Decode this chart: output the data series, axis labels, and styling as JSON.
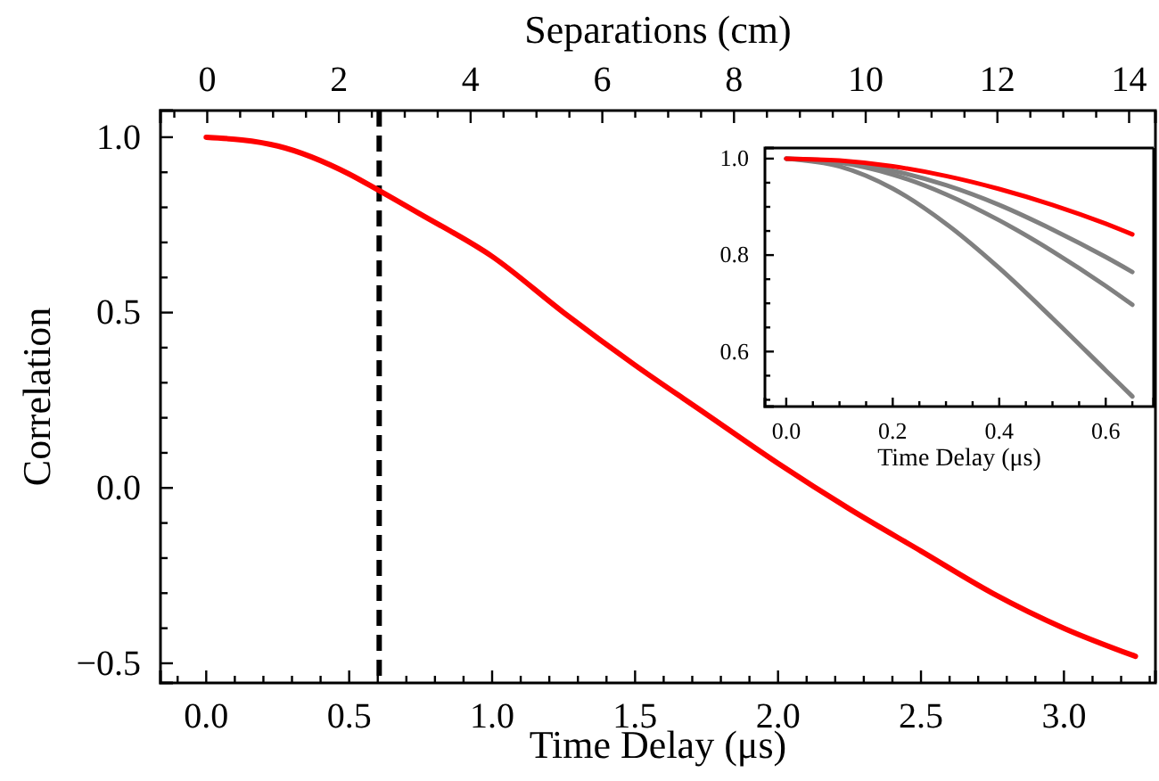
{
  "chart_data": [
    {
      "type": "line",
      "xlabel": "Time Delay (μs)",
      "ylabel": "Correlation",
      "x2label": "Separations (cm)",
      "xlim": [
        -0.16,
        3.32
      ],
      "ylim": [
        -0.556,
        1.076
      ],
      "x2lim": [
        -0.71,
        14.4
      ],
      "xticks": [
        {
          "value": -0.1,
          "label": null
        },
        {
          "value": 0,
          "label": "0.0"
        },
        {
          "value": 0.1,
          "label": null
        },
        {
          "value": 0.2,
          "label": null
        },
        {
          "value": 0.3,
          "label": null
        },
        {
          "value": 0.4,
          "label": null
        },
        {
          "value": 0.5,
          "label": "0.5"
        },
        {
          "value": 0.6,
          "label": null
        },
        {
          "value": 0.7,
          "label": null
        },
        {
          "value": 0.8,
          "label": null
        },
        {
          "value": 0.9,
          "label": null
        },
        {
          "value": 1,
          "label": "1.0"
        },
        {
          "value": 1.1,
          "label": null
        },
        {
          "value": 1.2,
          "label": null
        },
        {
          "value": 1.3,
          "label": null
        },
        {
          "value": 1.4,
          "label": null
        },
        {
          "value": 1.5,
          "label": "1.5"
        },
        {
          "value": 1.6,
          "label": null
        },
        {
          "value": 1.7,
          "label": null
        },
        {
          "value": 1.8,
          "label": null
        },
        {
          "value": 1.9,
          "label": null
        },
        {
          "value": 2,
          "label": "2.0"
        },
        {
          "value": 2.1,
          "label": null
        },
        {
          "value": 2.2,
          "label": null
        },
        {
          "value": 2.3,
          "label": null
        },
        {
          "value": 2.4,
          "label": null
        },
        {
          "value": 2.5,
          "label": "2.5"
        },
        {
          "value": 2.6,
          "label": null
        },
        {
          "value": 2.7,
          "label": null
        },
        {
          "value": 2.8,
          "label": null
        },
        {
          "value": 2.9,
          "label": null
        },
        {
          "value": 3,
          "label": "3.0"
        },
        {
          "value": 3.1,
          "label": null
        },
        {
          "value": 3.2,
          "label": null
        },
        {
          "value": 3.3,
          "label": null
        }
      ],
      "yticks": [
        {
          "value": -0.5,
          "label": "−0.5"
        },
        {
          "value": -0.4,
          "label": null
        },
        {
          "value": -0.3,
          "label": null
        },
        {
          "value": -0.2,
          "label": null
        },
        {
          "value": -0.1,
          "label": null
        },
        {
          "value": 0,
          "label": "0.0"
        },
        {
          "value": 0.1,
          "label": null
        },
        {
          "value": 0.2,
          "label": null
        },
        {
          "value": 0.3,
          "label": null
        },
        {
          "value": 0.4,
          "label": null
        },
        {
          "value": 0.5,
          "label": "0.5"
        },
        {
          "value": 0.6,
          "label": null
        },
        {
          "value": 0.7,
          "label": null
        },
        {
          "value": 0.8,
          "label": null
        },
        {
          "value": 0.9,
          "label": null
        },
        {
          "value": 1,
          "label": "1.0"
        }
      ],
      "x2ticks": [
        {
          "value": -0.5,
          "label": null
        },
        0,
        {
          "value": 0.5,
          "label": null
        },
        {
          "value": 1,
          "label": null
        },
        {
          "value": 1.5,
          "label": null
        },
        2,
        {
          "value": 2.5,
          "label": null
        },
        {
          "value": 3,
          "label": null
        },
        {
          "value": 3.5,
          "label": null
        },
        4,
        {
          "value": 4.5,
          "label": null
        },
        {
          "value": 5,
          "label": null
        },
        {
          "value": 5.5,
          "label": null
        },
        6,
        {
          "value": 6.5,
          "label": null
        },
        {
          "value": 7,
          "label": null
        },
        {
          "value": 7.5,
          "label": null
        },
        8,
        {
          "value": 8.5,
          "label": null
        },
        {
          "value": 9,
          "label": null
        },
        {
          "value": 9.5,
          "label": null
        },
        10,
        {
          "value": 10.5,
          "label": null
        },
        {
          "value": 11,
          "label": null
        },
        {
          "value": 11.5,
          "label": null
        },
        12,
        {
          "value": 12.5,
          "label": null
        },
        {
          "value": 13,
          "label": null
        },
        {
          "value": 13.5,
          "label": null
        },
        14
      ],
      "grid": false,
      "marker": "none",
      "line_style": "solid",
      "ref_lines": [
        {
          "axis": "x",
          "value": 0.605,
          "color": "#000000",
          "line_style": "dashed"
        }
      ],
      "series": [
        {
          "color": "#ff0000",
          "x": [
            0,
            0.25,
            0.5,
            0.6,
            0.75,
            1,
            1.25,
            1.5,
            1.75,
            2,
            2.25,
            2.5,
            2.75,
            3,
            3.25
          ],
          "values": [
            1,
            0.975,
            0.895,
            0.85,
            0.78,
            0.66,
            0.5,
            0.35,
            0.21,
            0.07,
            -0.06,
            -0.18,
            -0.3,
            -0.4,
            -0.48
          ]
        }
      ]
    },
    {
      "type": "line",
      "xlabel": "Time Delay (μs)",
      "xlim": [
        -0.04,
        0.69
      ],
      "ylim": [
        0.486,
        1.022
      ],
      "xticks": [
        {
          "value": 0,
          "label": "0.0"
        },
        {
          "value": 0.05,
          "label": null
        },
        {
          "value": 0.1,
          "label": null
        },
        {
          "value": 0.15,
          "label": null
        },
        {
          "value": 0.2,
          "label": "0.2"
        },
        {
          "value": 0.25,
          "label": null
        },
        {
          "value": 0.3,
          "label": null
        },
        {
          "value": 0.35,
          "label": null
        },
        {
          "value": 0.4,
          "label": "0.4"
        },
        {
          "value": 0.45,
          "label": null
        },
        {
          "value": 0.5,
          "label": null
        },
        {
          "value": 0.55,
          "label": null
        },
        {
          "value": 0.6,
          "label": "0.6"
        },
        {
          "value": 0.65,
          "label": null
        }
      ],
      "yticks": [
        {
          "value": 0.5,
          "label": null
        },
        {
          "value": 0.55,
          "label": null
        },
        {
          "value": 0.6,
          "label": "0.6"
        },
        {
          "value": 0.65,
          "label": null
        },
        {
          "value": 0.7,
          "label": null
        },
        {
          "value": 0.75,
          "label": null
        },
        {
          "value": 0.8,
          "label": "0.8"
        },
        {
          "value": 0.85,
          "label": null
        },
        {
          "value": 0.9,
          "label": null
        },
        {
          "value": 0.95,
          "label": null
        },
        {
          "value": 1,
          "label": "1.0"
        }
      ],
      "grid": false,
      "marker": "none",
      "line_style": "solid",
      "x": [
        0,
        0.1,
        0.2,
        0.3,
        0.4,
        0.5,
        0.6,
        0.65
      ],
      "series": [
        {
          "color": "#808080",
          "values": [
            1,
            0.994,
            0.975,
            0.945,
            0.904,
            0.853,
            0.796,
            0.765
          ]
        },
        {
          "color": "#808080",
          "values": [
            1,
            0.992,
            0.967,
            0.926,
            0.872,
            0.808,
            0.736,
            0.697
          ]
        },
        {
          "color": "#808080",
          "values": [
            1,
            0.984,
            0.938,
            0.865,
            0.773,
            0.669,
            0.561,
            0.507
          ]
        },
        {
          "color": "#ff0000",
          "values": [
            1,
            0.996,
            0.984,
            0.964,
            0.937,
            0.904,
            0.865,
            0.843
          ]
        }
      ]
    }
  ]
}
